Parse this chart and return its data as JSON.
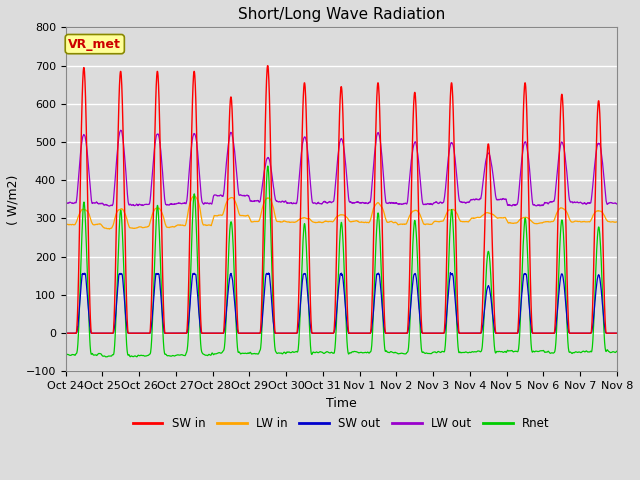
{
  "title": "Short/Long Wave Radiation",
  "xlabel": "Time",
  "ylabel": "( W/m2)",
  "ylim": [
    -100,
    800
  ],
  "yticks": [
    -100,
    0,
    100,
    200,
    300,
    400,
    500,
    600,
    700,
    800
  ],
  "label_box": "VR_met",
  "legend_labels": [
    "SW in",
    "LW in",
    "SW out",
    "LW out",
    "Rnet"
  ],
  "line_colors": {
    "SW_in": "#ff0000",
    "LW_in": "#ffa500",
    "SW_out": "#0000cc",
    "LW_out": "#9900cc",
    "Rnet": "#00cc00"
  },
  "x_tick_labels": [
    "Oct 24",
    "Oct 25",
    "Oct 26",
    "Oct 27",
    "Oct 28",
    "Oct 29",
    "Oct 30",
    "Oct 31",
    "Nov 1",
    "Nov 2",
    "Nov 3",
    "Nov 4",
    "Nov 5",
    "Nov 6",
    "Nov 7",
    "Nov 8"
  ],
  "n_days": 15,
  "pts_per_day": 144,
  "background_color": "#dcdcdc",
  "plot_bg_color": "#dcdcdc",
  "grid_color": "#ffffff",
  "title_fontsize": 11,
  "axis_fontsize": 9,
  "tick_fontsize": 8
}
